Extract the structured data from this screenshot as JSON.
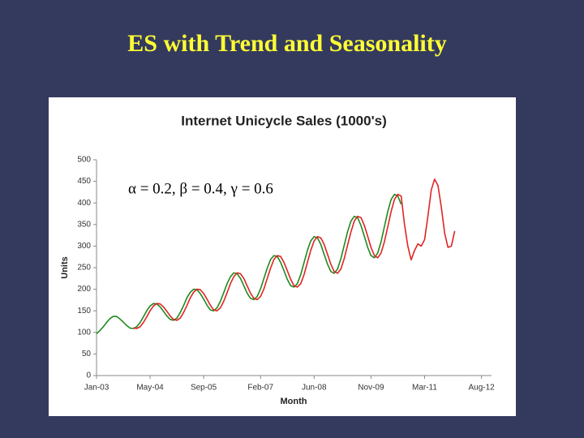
{
  "slide_title": "ES with Trend and Seasonality",
  "chart_data": {
    "type": "line",
    "title": "Internet Unicycle Sales (1000's)",
    "xlabel": "Month",
    "ylabel": "Units",
    "annotation": "α = 0.2, β = 0.4, γ = 0.6",
    "x": [
      0,
      1,
      2,
      3,
      4,
      5,
      6,
      7,
      8,
      9,
      10,
      11,
      12,
      13,
      14,
      15,
      16,
      17,
      18,
      19,
      20,
      21,
      22,
      23,
      24,
      25,
      26,
      27,
      28,
      29,
      30,
      31,
      32,
      33,
      34,
      35,
      36,
      37,
      38,
      39,
      40,
      41,
      42,
      43,
      44,
      45,
      46,
      47,
      48,
      49,
      50,
      51,
      52,
      53,
      54,
      55,
      56,
      57,
      58,
      59,
      60,
      61,
      62,
      63,
      64,
      65,
      66,
      67,
      68,
      69,
      70,
      71,
      72,
      73,
      74,
      75,
      76,
      77,
      78,
      79,
      80,
      81,
      82,
      83,
      84,
      85,
      86,
      87,
      88,
      89,
      90,
      91,
      92,
      93,
      94,
      95,
      96,
      97,
      98,
      99,
      100,
      101,
      102,
      103,
      104,
      105,
      106,
      107
    ],
    "series": [
      {
        "color": "#1f8a1f",
        "values": [
          97,
          104,
          113,
          123,
          132,
          137,
          137,
          131,
          124,
          116,
          110,
          109,
          113,
          123,
          136,
          150,
          161,
          167,
          166,
          159,
          149,
          138,
          130,
          128,
          133,
          146,
          162,
          180,
          193,
          200,
          199,
          190,
          177,
          163,
          152,
          150,
          157,
          172,
          192,
          213,
          229,
          238,
          236,
          225,
          208,
          191,
          179,
          176,
          183,
          201,
          225,
          249,
          269,
          278,
          276,
          262,
          243,
          223,
          208,
          205,
          213,
          234,
          262,
          290,
          312,
          322,
          319,
          304,
          281,
          258,
          241,
          237,
          247,
          271,
          302,
          333,
          358,
          369,
          366,
          348,
          323,
          297,
          278,
          273,
          284,
          310,
          345,
          380,
          408,
          420,
          416,
          397,
          null,
          null,
          null,
          null,
          null,
          null,
          null,
          null,
          null,
          null,
          null,
          null,
          null,
          null,
          null,
          null
        ]
      },
      {
        "color": "#e02424",
        "values": [
          null,
          null,
          null,
          null,
          null,
          null,
          null,
          null,
          null,
          null,
          null,
          110,
          109,
          113,
          123,
          136,
          150,
          161,
          167,
          166,
          159,
          149,
          138,
          130,
          128,
          133,
          146,
          162,
          180,
          193,
          200,
          199,
          190,
          177,
          163,
          152,
          150,
          157,
          172,
          192,
          213,
          229,
          238,
          236,
          225,
          208,
          191,
          179,
          176,
          183,
          201,
          225,
          249,
          269,
          278,
          276,
          262,
          243,
          223,
          208,
          205,
          213,
          234,
          262,
          290,
          312,
          322,
          319,
          304,
          281,
          258,
          241,
          237,
          247,
          271,
          302,
          333,
          358,
          369,
          366,
          348,
          323,
          297,
          278,
          273,
          284,
          310,
          345,
          380,
          408,
          420,
          416,
          350,
          300,
          268,
          290,
          305,
          300,
          315,
          370,
          430,
          455,
          440,
          390,
          330,
          297,
          300,
          335
        ]
      }
    ],
    "xlim": [
      0,
      118
    ],
    "xticks": [
      {
        "value": 0,
        "label": "Jan-03"
      },
      {
        "value": 16,
        "label": "May-04"
      },
      {
        "value": 32,
        "label": "Sep-05"
      },
      {
        "value": 49,
        "label": "Feb-07"
      },
      {
        "value": 65,
        "label": "Jun-08"
      },
      {
        "value": 82,
        "label": "Nov-09"
      },
      {
        "value": 98,
        "label": "Mar-11"
      },
      {
        "value": 115,
        "label": "Aug-12"
      }
    ],
    "ylim": [
      0,
      500
    ],
    "yticks": [
      0,
      50,
      100,
      150,
      200,
      250,
      300,
      350,
      400,
      450,
      500
    ],
    "grid": false
  }
}
